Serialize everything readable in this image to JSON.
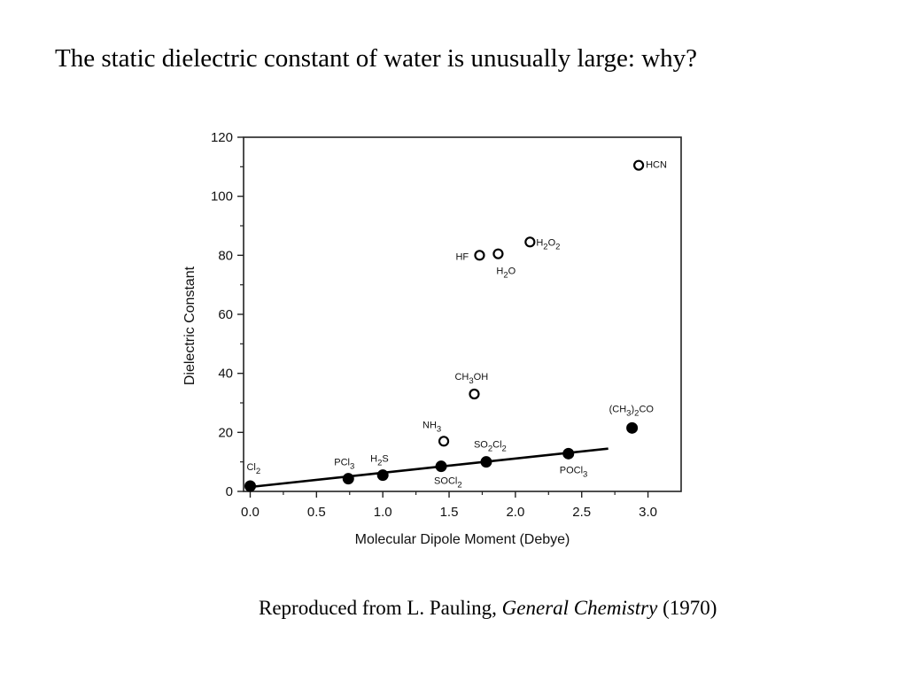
{
  "slide": {
    "title": "The static dielectric constant of water is unusually large: why?",
    "citation_prefix": "Reproduced from L. Pauling, ",
    "citation_book": "General Chemistry",
    "citation_suffix": " (1970)"
  },
  "chart_data": {
    "type": "scatter",
    "title": "",
    "xlabel": "Molecular Dipole Moment (Debye)",
    "ylabel": "Dielectric Constant",
    "xlim": [
      -0.05,
      3.25
    ],
    "ylim": [
      0,
      120
    ],
    "xticks": [
      0.0,
      0.5,
      1.0,
      1.5,
      2.0,
      2.5,
      3.0
    ],
    "xtick_labels": [
      "0.0",
      "0.5",
      "1.0",
      "1.5",
      "2.0",
      "2.5",
      "3.0"
    ],
    "yticks": [
      0,
      20,
      40,
      60,
      80,
      100,
      120
    ],
    "ytick_labels": [
      "0",
      "20",
      "40",
      "60",
      "80",
      "100",
      "120"
    ],
    "grid": false,
    "legend": "none",
    "series": [
      {
        "marker": "filled-circle",
        "points": [
          {
            "label": "Cl",
            "sub": "2",
            "after": "",
            "x": 0.0,
            "y": 1.8
          },
          {
            "label": "PCl",
            "sub": "3",
            "after": "",
            "x": 0.74,
            "y": 4.3
          },
          {
            "label": "H",
            "sub": "2",
            "after": "S",
            "x": 1.0,
            "y": 5.5
          },
          {
            "label": "SOCl",
            "sub": "2",
            "after": "",
            "x": 1.44,
            "y": 8.5
          },
          {
            "label": "SO",
            "sub": "2",
            "after": "Cl",
            "sub2": "2",
            "x": 1.78,
            "y": 10.0
          },
          {
            "label": "POCl",
            "sub": "3",
            "after": "",
            "x": 2.4,
            "y": 12.8
          },
          {
            "label": "(CH",
            "sub": "3",
            "after": ")",
            "sub2": "2",
            "after2": "CO",
            "x": 2.88,
            "y": 21.5
          }
        ]
      },
      {
        "marker": "open-circle",
        "points": [
          {
            "label": "NH",
            "sub": "3",
            "after": "",
            "x": 1.46,
            "y": 17.0
          },
          {
            "label": "CH",
            "sub": "3",
            "after": "OH",
            "x": 1.69,
            "y": 33.0
          },
          {
            "label": "HF",
            "sub": "",
            "after": "",
            "x": 1.73,
            "y": 80.0
          },
          {
            "label": "H",
            "sub": "2",
            "after": "O",
            "x": 1.87,
            "y": 80.5
          },
          {
            "label": "H",
            "sub": "2",
            "after": "O",
            "sub2": "2",
            "x": 2.11,
            "y": 84.5
          },
          {
            "label": "HCN",
            "sub": "",
            "after": "",
            "x": 2.93,
            "y": 110.5
          }
        ]
      }
    ],
    "trendline": {
      "x": [
        0.0,
        2.7
      ],
      "y": [
        1.5,
        14.5
      ]
    }
  }
}
